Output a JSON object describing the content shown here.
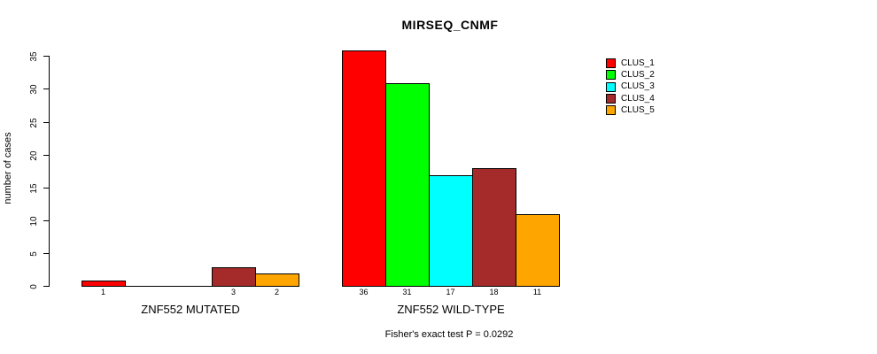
{
  "title": "MIRSEQ_CNMF",
  "chart_data": {
    "type": "bar",
    "title": "MIRSEQ_CNMF",
    "xlabel": "",
    "ylabel": "number of cases",
    "ylim": [
      0,
      36
    ],
    "yticks": [
      0,
      5,
      10,
      15,
      20,
      25,
      30,
      35
    ],
    "grid": false,
    "legend_position": "top-right-inside",
    "series_names": [
      "CLUS_1",
      "CLUS_2",
      "CLUS_3",
      "CLUS_4",
      "CLUS_5"
    ],
    "series_colors": [
      "#FF0000",
      "#00FF00",
      "#00FFFF",
      "#A52A2A",
      "#FFA500"
    ],
    "groups": [
      {
        "label": "ZNF552 MUTATED",
        "values": [
          1,
          0,
          0,
          3,
          2
        ]
      },
      {
        "label": "ZNF552 WILD-TYPE",
        "values": [
          36,
          31,
          17,
          18,
          11
        ]
      }
    ]
  },
  "footer": {
    "caption": "Fisher's exact test P = 0.0292"
  }
}
